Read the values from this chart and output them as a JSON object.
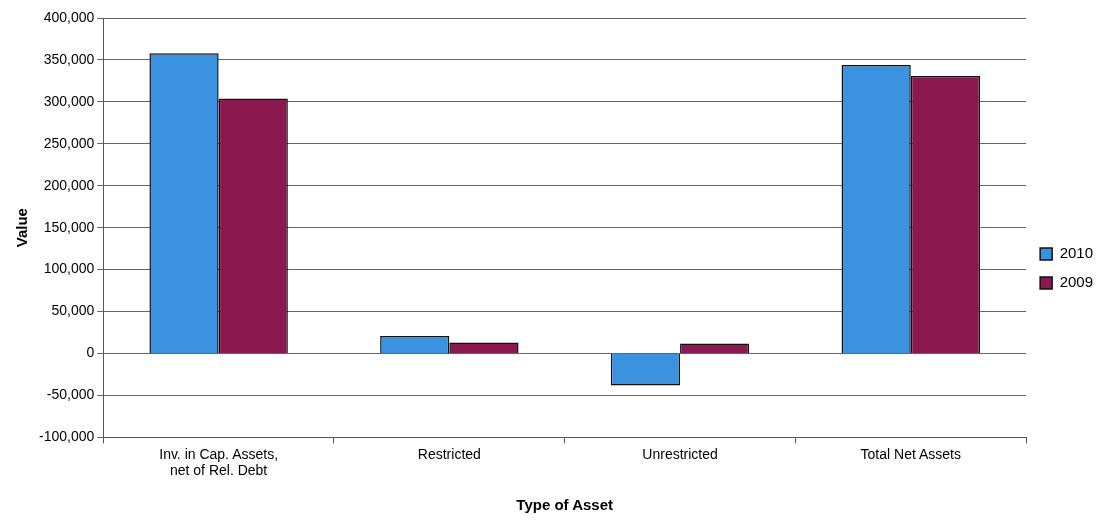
{
  "chart_data": {
    "type": "bar",
    "xlabel": "Type of Asset",
    "ylabel": "Value",
    "categories": [
      "Inv. in Cap. Assets, net of Rel. Debt",
      "Restricted",
      "Unrestricted",
      "Total Net Assets"
    ],
    "series": [
      {
        "name": "2010",
        "color": "#3a92e0",
        "values": [
          358000,
          21000,
          -38000,
          344000
        ]
      },
      {
        "name": "2009",
        "color": "#8c1850",
        "values": [
          304000,
          13000,
          12000,
          331000
        ]
      }
    ],
    "ylim": [
      -100000,
      400000
    ],
    "yticks": [
      {
        "value": -100000,
        "label": "-100,000"
      },
      {
        "value": -50000,
        "label": "-50,000"
      },
      {
        "value": 0,
        "label": "0"
      },
      {
        "value": 50000,
        "label": "50,000"
      },
      {
        "value": 100000,
        "label": "100,000"
      },
      {
        "value": 150000,
        "label": "150,000"
      },
      {
        "value": 200000,
        "label": "200,000"
      },
      {
        "value": 250000,
        "label": "250,000"
      },
      {
        "value": 300000,
        "label": "300,000"
      },
      {
        "value": 350000,
        "label": "350,000"
      },
      {
        "value": 400000,
        "label": "400,000"
      }
    ],
    "grid": "y",
    "legend": "right"
  }
}
